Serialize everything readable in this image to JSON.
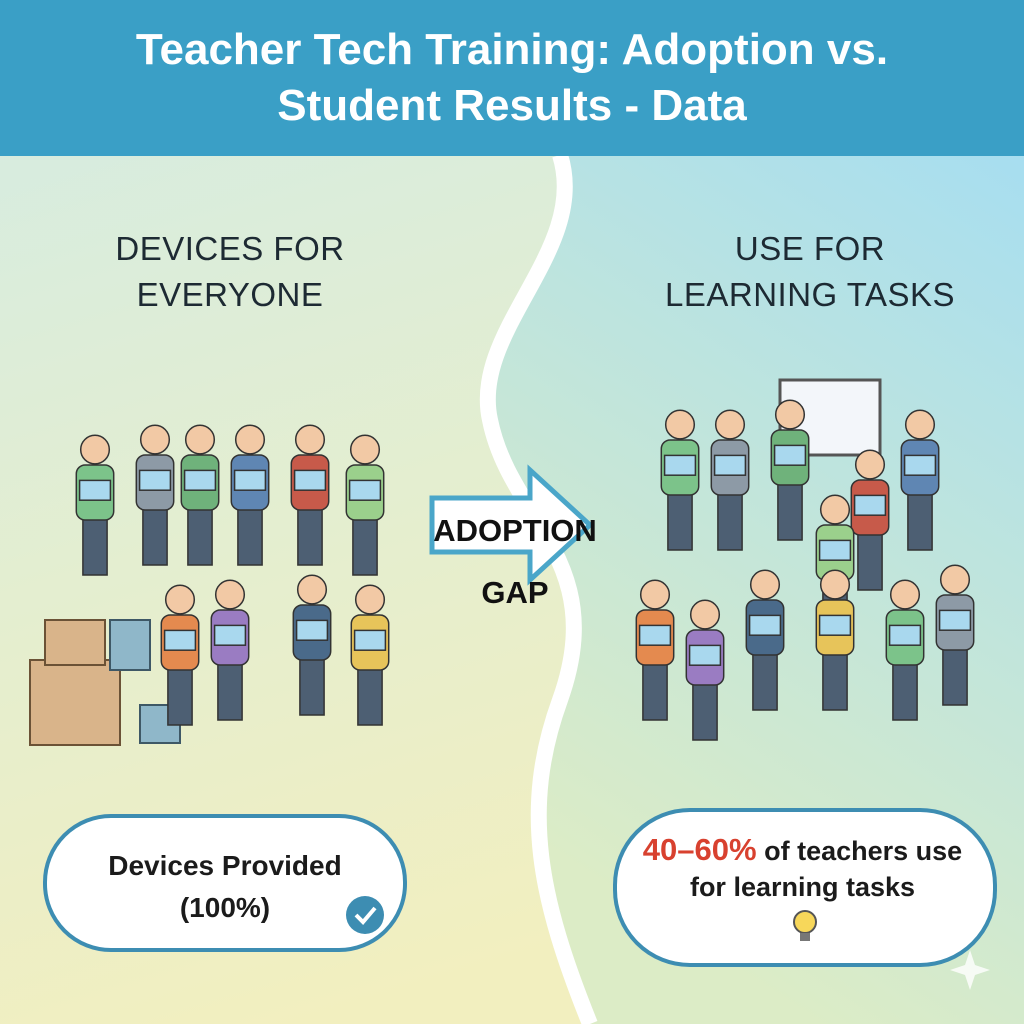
{
  "header": {
    "title": "Teacher Tech Training: Adoption vs. Student Results - Data"
  },
  "left": {
    "heading": "DEVICES FOR EVERYONE",
    "callout": "Devices Provided (100%)"
  },
  "middle": {
    "arrow_label": "ADOPTION GAP"
  },
  "right": {
    "heading": "USE FOR LEARNING TASKS",
    "callout": {
      "highlight": "40–60%",
      "text": "of teachers use for learning tasks"
    }
  }
}
